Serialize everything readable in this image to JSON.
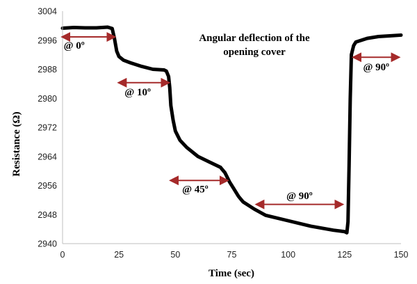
{
  "chart_data": {
    "type": "line",
    "xlabel": "Time (sec)",
    "ylabel": "Resistance (Ω)",
    "xlim": [
      0,
      150
    ],
    "ylim": [
      2940,
      3004
    ],
    "x_ticks": [
      "0",
      "25",
      "50",
      "75",
      "100",
      "125",
      "150"
    ],
    "y_ticks": [
      "2940",
      "2948",
      "2956",
      "2964",
      "2972",
      "2980",
      "2988",
      "2996",
      "3004"
    ],
    "grid": false,
    "annotation_title": [
      "Angular deflection of the",
      "opening cover"
    ],
    "series": [
      {
        "color": "#000000",
        "x": [
          0,
          5,
          10,
          15,
          20,
          22,
          23,
          24,
          25,
          27,
          30,
          35,
          40,
          45,
          46,
          47,
          47.5,
          48,
          49,
          50,
          52,
          55,
          60,
          65,
          70,
          72,
          74,
          76,
          78,
          80,
          85,
          90,
          100,
          110,
          120,
          125,
          126,
          126.5,
          127,
          127.5,
          128,
          129,
          130,
          135,
          140,
          145,
          150
        ],
        "y": [
          2999.3,
          2999.5,
          2999.4,
          2999.4,
          2999.6,
          2999.2,
          2996.5,
          2993.0,
          2991.5,
          2990.5,
          2989.8,
          2988.8,
          2988.0,
          2987.8,
          2987.5,
          2986.0,
          2983.0,
          2978.0,
          2974.0,
          2971.0,
          2968.5,
          2966.5,
          2964.0,
          2962.5,
          2961.0,
          2959.5,
          2957.0,
          2955.0,
          2953.0,
          2951.5,
          2949.5,
          2947.8,
          2946.3,
          2944.8,
          2943.7,
          2943.3,
          2943.0,
          2946.0,
          2962.0,
          2980.0,
          2992.0,
          2994.5,
          2995.5,
          2996.5,
          2997.0,
          2997.2,
          2997.4
        ]
      }
    ],
    "annotations": [
      {
        "label": "@ 0º",
        "x_start": 0,
        "x_end": 23,
        "y": 2996.9,
        "label_y": 2994.6,
        "label_x": 0.5,
        "anchor": "start",
        "color": "#a52a2a"
      },
      {
        "label": "@ 10º",
        "x_start": 25,
        "x_end": 47,
        "y": 2984.3,
        "label_y": 2981.8,
        "label_x": 27.5,
        "anchor": "start",
        "color": "#a52a2a"
      },
      {
        "label": "@ 45º",
        "x_start": 48,
        "x_end": 73,
        "y": 2957.4,
        "label_y": 2955.0,
        "label_x": 53,
        "anchor": "start",
        "color": "#a52a2a"
      },
      {
        "label": "@ 90º",
        "x_start": 86,
        "x_end": 124,
        "y": 2950.8,
        "label_y": 2953.2,
        "label_x": 105,
        "anchor": "middle",
        "color": "#a52a2a"
      },
      {
        "label": "@ 90º",
        "x_start": 129,
        "x_end": 149,
        "y": 2991.3,
        "label_y": 2988.7,
        "label_x": 139,
        "anchor": "middle",
        "color": "#a52a2a"
      }
    ]
  }
}
